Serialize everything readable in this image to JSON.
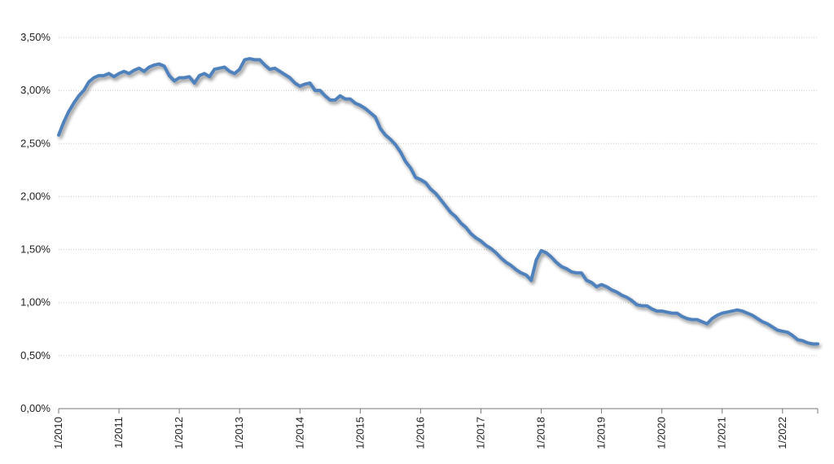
{
  "chart_data": {
    "type": "line",
    "title": "",
    "xlabel": "",
    "ylabel": "",
    "ylim": [
      0,
      3.5
    ],
    "y_ticks": [
      0,
      0.5,
      1.0,
      1.5,
      2.0,
      2.5,
      3.0,
      3.5
    ],
    "y_tick_labels": [
      "0,00%",
      "0,50%",
      "1,00%",
      "1,50%",
      "2,00%",
      "2,50%",
      "3,00%",
      "3,50%"
    ],
    "x_tick_labels": [
      "1/2010",
      "1/2011",
      "1/2012",
      "1/2013",
      "1/2014",
      "1/2015",
      "1/2016",
      "1/2017",
      "1/2018",
      "1/2019",
      "1/2020",
      "1/2021",
      "1/2022"
    ],
    "x_range": [
      "2010-01",
      "2022-08"
    ],
    "grid": "horizontal dotted",
    "legend": "none",
    "line_color": "#4f81bd",
    "series": [
      {
        "x": [
          "2010-01",
          "2010-02",
          "2010-03",
          "2010-04",
          "2010-05",
          "2010-06",
          "2010-07",
          "2010-08",
          "2010-09",
          "2010-10",
          "2010-11",
          "2010-12",
          "2011-01",
          "2011-02",
          "2011-03",
          "2011-04",
          "2011-05",
          "2011-06",
          "2011-07",
          "2011-08",
          "2011-09",
          "2011-10",
          "2011-11",
          "2011-12",
          "2012-01",
          "2012-02",
          "2012-03",
          "2012-04",
          "2012-05",
          "2012-06",
          "2012-07",
          "2012-08",
          "2012-09",
          "2012-10",
          "2012-11",
          "2012-12",
          "2013-01",
          "2013-02",
          "2013-03",
          "2013-04",
          "2013-05",
          "2013-06",
          "2013-07",
          "2013-08",
          "2013-09",
          "2013-10",
          "2013-11",
          "2013-12",
          "2014-01",
          "2014-02",
          "2014-03",
          "2014-04",
          "2014-05",
          "2014-06",
          "2014-07",
          "2014-08",
          "2014-09",
          "2014-10",
          "2014-11",
          "2014-12",
          "2015-01",
          "2015-02",
          "2015-03",
          "2015-04",
          "2015-05",
          "2015-06",
          "2015-07",
          "2015-08",
          "2015-09",
          "2015-10",
          "2015-11",
          "2015-12",
          "2016-01",
          "2016-02",
          "2016-03",
          "2016-04",
          "2016-05",
          "2016-06",
          "2016-07",
          "2016-08",
          "2016-09",
          "2016-10",
          "2016-11",
          "2016-12",
          "2017-01",
          "2017-02",
          "2017-03",
          "2017-04",
          "2017-05",
          "2017-06",
          "2017-07",
          "2017-08",
          "2017-09",
          "2017-10",
          "2017-11",
          "2017-12",
          "2018-01",
          "2018-02",
          "2018-03",
          "2018-04",
          "2018-05",
          "2018-06",
          "2018-07",
          "2018-08",
          "2018-09",
          "2018-10",
          "2018-11",
          "2018-12",
          "2019-01",
          "2019-02",
          "2019-03",
          "2019-04",
          "2019-05",
          "2019-06",
          "2019-07",
          "2019-08",
          "2019-09",
          "2019-10",
          "2019-11",
          "2019-12",
          "2020-01",
          "2020-02",
          "2020-03",
          "2020-04",
          "2020-05",
          "2020-06",
          "2020-07",
          "2020-08",
          "2020-09",
          "2020-10",
          "2020-11",
          "2020-12",
          "2021-01",
          "2021-02",
          "2021-03",
          "2021-04",
          "2021-05",
          "2021-06",
          "2021-07",
          "2021-08",
          "2021-09",
          "2021-10",
          "2021-11",
          "2021-12",
          "2022-01",
          "2022-02",
          "2022-03",
          "2022-04",
          "2022-05",
          "2022-06",
          "2022-07",
          "2022-08"
        ],
        "values": [
          2.58,
          2.7,
          2.8,
          2.88,
          2.95,
          3.0,
          3.08,
          3.12,
          3.14,
          3.14,
          3.16,
          3.13,
          3.16,
          3.18,
          3.16,
          3.19,
          3.21,
          3.18,
          3.22,
          3.24,
          3.25,
          3.23,
          3.14,
          3.09,
          3.12,
          3.12,
          3.13,
          3.07,
          3.14,
          3.16,
          3.13,
          3.2,
          3.21,
          3.22,
          3.18,
          3.16,
          3.2,
          3.29,
          3.3,
          3.29,
          3.29,
          3.24,
          3.2,
          3.21,
          3.18,
          3.15,
          3.12,
          3.07,
          3.04,
          3.06,
          3.07,
          3.0,
          3.0,
          2.95,
          2.91,
          2.91,
          2.95,
          2.92,
          2.92,
          2.88,
          2.86,
          2.83,
          2.79,
          2.75,
          2.64,
          2.58,
          2.54,
          2.49,
          2.42,
          2.33,
          2.27,
          2.18,
          2.16,
          2.13,
          2.07,
          2.03,
          1.97,
          1.91,
          1.85,
          1.81,
          1.75,
          1.71,
          1.65,
          1.61,
          1.58,
          1.54,
          1.51,
          1.47,
          1.42,
          1.38,
          1.35,
          1.31,
          1.28,
          1.26,
          1.21,
          1.4,
          1.49,
          1.47,
          1.43,
          1.38,
          1.34,
          1.32,
          1.29,
          1.28,
          1.28,
          1.21,
          1.19,
          1.15,
          1.17,
          1.15,
          1.12,
          1.1,
          1.07,
          1.05,
          1.02,
          0.98,
          0.97,
          0.97,
          0.94,
          0.92,
          0.92,
          0.91,
          0.9,
          0.9,
          0.87,
          0.85,
          0.84,
          0.84,
          0.82,
          0.8,
          0.85,
          0.88,
          0.9,
          0.91,
          0.92,
          0.93,
          0.92,
          0.9,
          0.88,
          0.85,
          0.82,
          0.8,
          0.77,
          0.74,
          0.73,
          0.72,
          0.69,
          0.65,
          0.64,
          0.62,
          0.61,
          0.61
        ]
      }
    ]
  }
}
